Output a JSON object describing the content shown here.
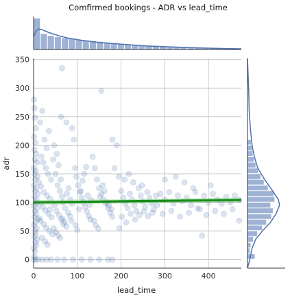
{
  "chart_data": {
    "type": "scatter",
    "title": "Comfirmed bookings - ADR vs lead_time",
    "xlabel": "lead_time",
    "ylabel": "adr",
    "xlim": [
      0,
      475
    ],
    "ylim": [
      -15,
      352
    ],
    "x_ticks": [
      0,
      100,
      200,
      300,
      400
    ],
    "y_ticks": [
      0,
      50,
      100,
      150,
      200,
      250,
      300,
      350
    ],
    "grid": true,
    "colors": {
      "points": "#4c72b0",
      "regression_line": "#178a17",
      "confidence_band": "#7ccf7c",
      "histogram": "#4c72b0",
      "grid": "#cccccc",
      "axes": "#333333"
    },
    "regression": {
      "intercept": 100,
      "slope": 0.009,
      "x_range": [
        0,
        475
      ],
      "ci_halfwidth": 4
    },
    "points": [
      [
        2,
        5
      ],
      [
        5,
        0
      ],
      [
        1,
        0
      ],
      [
        10,
        0
      ],
      [
        20,
        0
      ],
      [
        30,
        0
      ],
      [
        40,
        0
      ],
      [
        55,
        0
      ],
      [
        70,
        0
      ],
      [
        90,
        0
      ],
      [
        110,
        0
      ],
      [
        130,
        0
      ],
      [
        150,
        0
      ],
      [
        170,
        0
      ],
      [
        180,
        0
      ],
      [
        1,
        280
      ],
      [
        2,
        265
      ],
      [
        3,
        248
      ],
      [
        5,
        230
      ],
      [
        1,
        215
      ],
      [
        4,
        205
      ],
      [
        2,
        192
      ],
      [
        6,
        185
      ],
      [
        3,
        175
      ],
      [
        8,
        170
      ],
      [
        1,
        160
      ],
      [
        5,
        155
      ],
      [
        2,
        150
      ],
      [
        9,
        145
      ],
      [
        4,
        140
      ],
      [
        1,
        130
      ],
      [
        6,
        125
      ],
      [
        3,
        120
      ],
      [
        10,
        115
      ],
      [
        2,
        110
      ],
      [
        7,
        105
      ],
      [
        5,
        100
      ],
      [
        1,
        95
      ],
      [
        8,
        90
      ],
      [
        3,
        85
      ],
      [
        6,
        80
      ],
      [
        2,
        75
      ],
      [
        9,
        70
      ],
      [
        4,
        65
      ],
      [
        1,
        60
      ],
      [
        7,
        55
      ],
      [
        3,
        50
      ],
      [
        5,
        45
      ],
      [
        2,
        40
      ],
      [
        8,
        35
      ],
      [
        4,
        30
      ],
      [
        6,
        25
      ],
      [
        1,
        20
      ],
      [
        3,
        15
      ],
      [
        15,
        240
      ],
      [
        20,
        260
      ],
      [
        25,
        210
      ],
      [
        30,
        195
      ],
      [
        35,
        225
      ],
      [
        18,
        180
      ],
      [
        22,
        170
      ],
      [
        28,
        160
      ],
      [
        33,
        150
      ],
      [
        40,
        140
      ],
      [
        12,
        135
      ],
      [
        17,
        128
      ],
      [
        24,
        118
      ],
      [
        31,
        112
      ],
      [
        38,
        106
      ],
      [
        14,
        98
      ],
      [
        21,
        92
      ],
      [
        27,
        86
      ],
      [
        34,
        80
      ],
      [
        41,
        74
      ],
      [
        16,
        68
      ],
      [
        23,
        62
      ],
      [
        29,
        56
      ],
      [
        36,
        50
      ],
      [
        43,
        44
      ],
      [
        19,
        38
      ],
      [
        26,
        32
      ],
      [
        32,
        26
      ],
      [
        13,
        72
      ],
      [
        37,
        88
      ],
      [
        45,
        175
      ],
      [
        50,
        150
      ],
      [
        55,
        130
      ],
      [
        60,
        120
      ],
      [
        65,
        110
      ],
      [
        48,
        95
      ],
      [
        52,
        85
      ],
      [
        58,
        78
      ],
      [
        63,
        70
      ],
      [
        68,
        62
      ],
      [
        47,
        200
      ],
      [
        53,
        185
      ],
      [
        57,
        165
      ],
      [
        62,
        140
      ],
      [
        67,
        100
      ],
      [
        72,
        90
      ],
      [
        76,
        115
      ],
      [
        80,
        125
      ],
      [
        84,
        105
      ],
      [
        88,
        98
      ],
      [
        46,
        55
      ],
      [
        51,
        48
      ],
      [
        56,
        42
      ],
      [
        61,
        38
      ],
      [
        66,
        72
      ],
      [
        71,
        66
      ],
      [
        75,
        58
      ],
      [
        79,
        82
      ],
      [
        83,
        76
      ],
      [
        87,
        68
      ],
      [
        63,
        250
      ],
      [
        75,
        240
      ],
      [
        88,
        230
      ],
      [
        65,
        335
      ],
      [
        92,
        210
      ],
      [
        95,
        160
      ],
      [
        98,
        145
      ],
      [
        102,
        130
      ],
      [
        106,
        118
      ],
      [
        110,
        108
      ],
      [
        114,
        100
      ],
      [
        118,
        92
      ],
      [
        122,
        84
      ],
      [
        126,
        76
      ],
      [
        130,
        70
      ],
      [
        96,
        60
      ],
      [
        100,
        52
      ],
      [
        104,
        88
      ],
      [
        108,
        120
      ],
      [
        112,
        138
      ],
      [
        116,
        150
      ],
      [
        120,
        162
      ],
      [
        124,
        112
      ],
      [
        128,
        96
      ],
      [
        132,
        104
      ],
      [
        135,
        180
      ],
      [
        140,
        160
      ],
      [
        145,
        140
      ],
      [
        150,
        125
      ],
      [
        155,
        115
      ],
      [
        160,
        105
      ],
      [
        165,
        98
      ],
      [
        170,
        90
      ],
      [
        175,
        82
      ],
      [
        180,
        75
      ],
      [
        138,
        68
      ],
      [
        142,
        60
      ],
      [
        148,
        54
      ],
      [
        152,
        110
      ],
      [
        158,
        130
      ],
      [
        162,
        120
      ],
      [
        168,
        100
      ],
      [
        172,
        95
      ],
      [
        178,
        88
      ],
      [
        185,
        160
      ],
      [
        155,
        295
      ],
      [
        180,
        210
      ],
      [
        190,
        200
      ],
      [
        195,
        145
      ],
      [
        200,
        120
      ],
      [
        205,
        108
      ],
      [
        210,
        98
      ],
      [
        215,
        90
      ],
      [
        220,
        115
      ],
      [
        225,
        105
      ],
      [
        230,
        95
      ],
      [
        235,
        85
      ],
      [
        240,
        125
      ],
      [
        245,
        112
      ],
      [
        250,
        102
      ],
      [
        255,
        92
      ],
      [
        260,
        118
      ],
      [
        265,
        108
      ],
      [
        270,
        98
      ],
      [
        275,
        88
      ],
      [
        280,
        112
      ],
      [
        202,
        75
      ],
      [
        212,
        65
      ],
      [
        222,
        80
      ],
      [
        232,
        70
      ],
      [
        242,
        78
      ],
      [
        252,
        84
      ],
      [
        262,
        76
      ],
      [
        272,
        82
      ],
      [
        282,
        95
      ],
      [
        208,
        140
      ],
      [
        228,
        135
      ],
      [
        248,
        130
      ],
      [
        196,
        55
      ],
      [
        218,
        150
      ],
      [
        290,
        115
      ],
      [
        300,
        105
      ],
      [
        310,
        118
      ],
      [
        320,
        98
      ],
      [
        330,
        112
      ],
      [
        340,
        102
      ],
      [
        350,
        108
      ],
      [
        360,
        95
      ],
      [
        370,
        118
      ],
      [
        380,
        88
      ],
      [
        390,
        112
      ],
      [
        400,
        100
      ],
      [
        410,
        115
      ],
      [
        420,
        105
      ],
      [
        430,
        98
      ],
      [
        440,
        110
      ],
      [
        450,
        100
      ],
      [
        460,
        112
      ],
      [
        470,
        104
      ],
      [
        295,
        80
      ],
      [
        315,
        85
      ],
      [
        335,
        75
      ],
      [
        355,
        82
      ],
      [
        375,
        90
      ],
      [
        395,
        78
      ],
      [
        415,
        85
      ],
      [
        435,
        80
      ],
      [
        455,
        88
      ],
      [
        470,
        68
      ],
      [
        385,
        42
      ],
      [
        300,
        140
      ],
      [
        325,
        145
      ],
      [
        345,
        135
      ],
      [
        365,
        125
      ],
      [
        405,
        130
      ]
    ],
    "x_hist": {
      "bin_edges": [
        0,
        16,
        32,
        48,
        64,
        80,
        96,
        112,
        128,
        144,
        160,
        176,
        192,
        208,
        224,
        240,
        256,
        272,
        288,
        304,
        320,
        336,
        352,
        368,
        384,
        400,
        416,
        432,
        448,
        464,
        480
      ],
      "counts": [
        95,
        48,
        42,
        38,
        35,
        33,
        30,
        28,
        26,
        24,
        22,
        20,
        18,
        16,
        14,
        12,
        11,
        10,
        9,
        8,
        8,
        7,
        6,
        6,
        5,
        5,
        4,
        4,
        3,
        3
      ]
    },
    "x_kde": [
      [
        0,
        36
      ],
      [
        5,
        52
      ],
      [
        12,
        58
      ],
      [
        20,
        56
      ],
      [
        35,
        48
      ],
      [
        55,
        40
      ],
      [
        80,
        32
      ],
      [
        110,
        26
      ],
      [
        150,
        20
      ],
      [
        200,
        15
      ],
      [
        260,
        10
      ],
      [
        320,
        7
      ],
      [
        380,
        4.5
      ],
      [
        430,
        3
      ],
      [
        475,
        2
      ]
    ],
    "y_hist": {
      "bin_edges": [
        0,
        10,
        20,
        30,
        40,
        50,
        60,
        70,
        80,
        90,
        100,
        110,
        120,
        130,
        140,
        150,
        160,
        170,
        180,
        190,
        200,
        210
      ],
      "counts": [
        18,
        6,
        8,
        14,
        24,
        36,
        46,
        58,
        62,
        56,
        66,
        64,
        50,
        40,
        32,
        26,
        20,
        16,
        13,
        11,
        9
      ]
    },
    "y_kde": [
      [
        -15,
        0
      ],
      [
        0,
        4
      ],
      [
        20,
        8
      ],
      [
        35,
        14
      ],
      [
        50,
        26
      ],
      [
        65,
        40
      ],
      [
        80,
        50
      ],
      [
        95,
        56
      ],
      [
        105,
        54
      ],
      [
        120,
        44
      ],
      [
        140,
        30
      ],
      [
        160,
        18
      ],
      [
        180,
        12
      ],
      [
        200,
        8
      ],
      [
        230,
        5
      ],
      [
        260,
        3
      ],
      [
        300,
        2
      ],
      [
        352,
        0
      ]
    ]
  }
}
